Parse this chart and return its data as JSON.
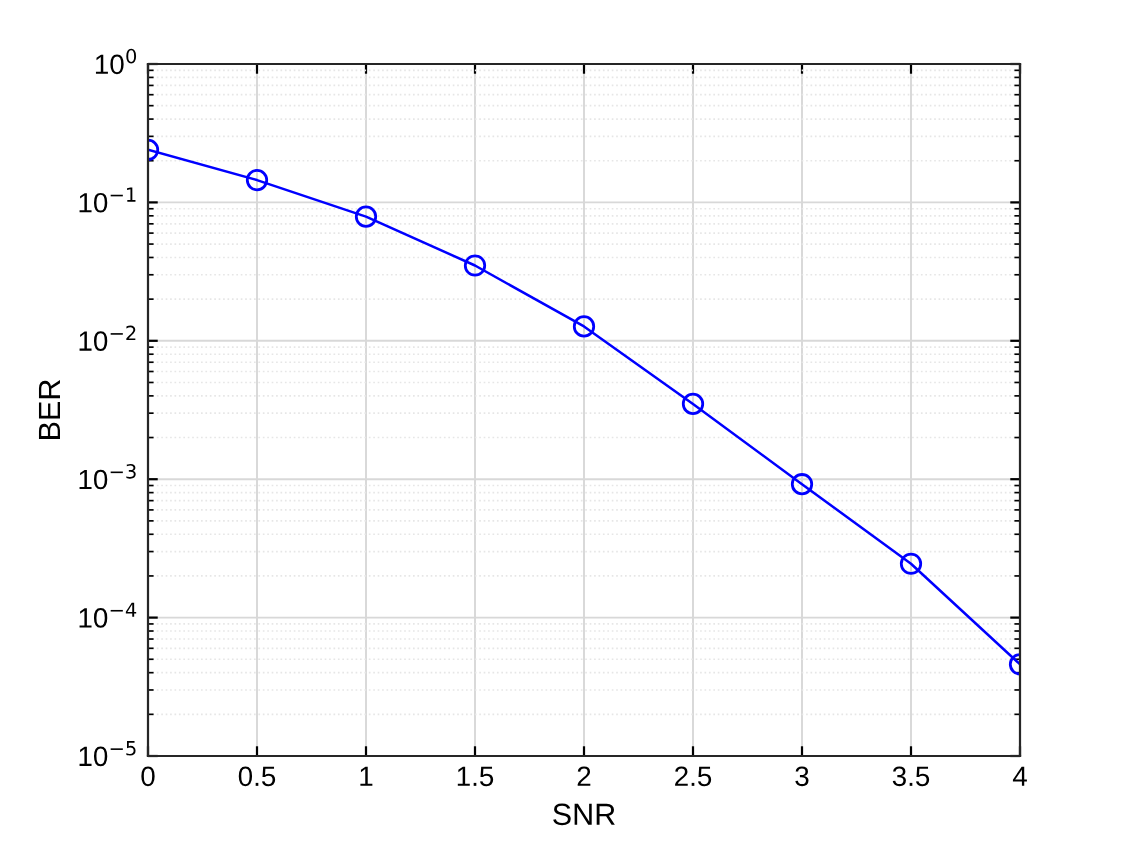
{
  "chart_data": {
    "type": "line",
    "xlabel": "SNR",
    "ylabel": "BER",
    "log": "y",
    "grid": true,
    "marker": "circle",
    "line_style": "solid",
    "x": [
      0,
      0.5,
      1,
      1.5,
      2,
      2.5,
      3,
      3.5,
      4
    ],
    "series": [
      {
        "color": "#0000ff",
        "values": [
          0.24,
          0.145,
          0.079,
          0.035,
          0.0127,
          0.0035,
          0.00092,
          0.000245,
          4.6e-05
        ]
      }
    ],
    "xlim": [
      0,
      4
    ],
    "xticks": [
      0,
      0.5,
      1,
      1.5,
      2,
      2.5,
      3,
      3.5,
      4
    ],
    "ylim": [
      1e-05,
      1
    ],
    "yticks": [
      {
        "value": 1e-05,
        "label": "10$^{−5}$"
      },
      {
        "value": 0.0001,
        "label": "10$^{−4}$"
      },
      {
        "value": 0.001,
        "label": "10$^{−3}$"
      },
      {
        "value": 0.01,
        "label": "10$^{−2}$"
      },
      {
        "value": 0.1,
        "label": "10$^{−1}$"
      },
      {
        "value": 1,
        "label": "10$^{0}$"
      }
    ]
  }
}
